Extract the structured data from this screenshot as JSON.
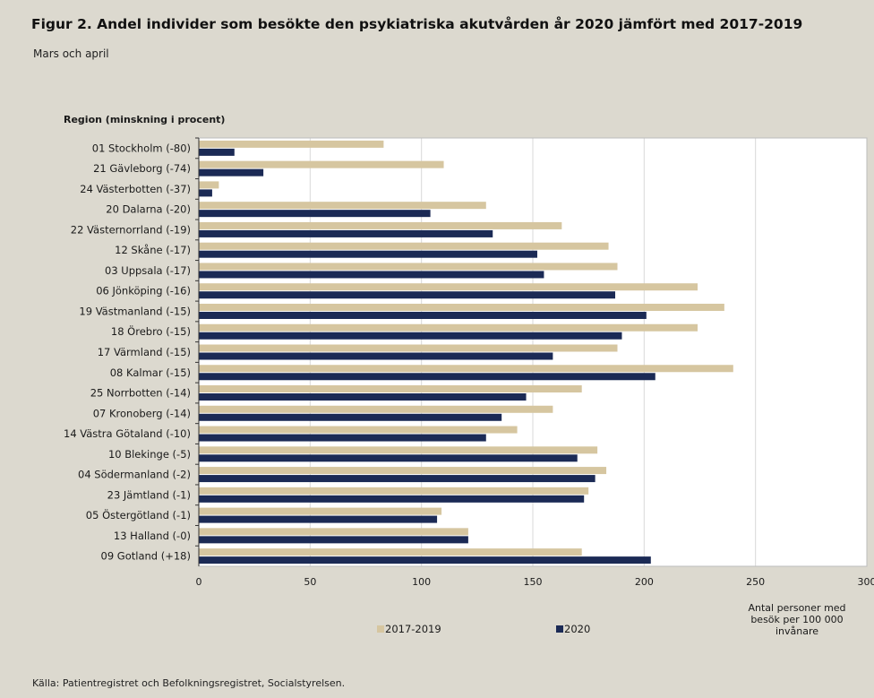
{
  "figure": {
    "title": "Figur 2. Andel individer som besökte den psykiatriska akutvården år 2020 jämfört med 2017-2019",
    "subtitle": "Mars och april",
    "source": "Källa: Patientregistret och Befolkningsregistret, Socialstyrelsen."
  },
  "chart_data": {
    "type": "bar",
    "orientation": "horizontal",
    "title": "Figur 2. Andel individer som besökte den psykiatriska akutvården år 2020 jämfört med 2017-2019",
    "subtitle": "Mars och april",
    "ylabel": "Region (minskning i procent)",
    "xlabel_lines": [
      "Antal personer med",
      "besök per 100 000",
      "invånare"
    ],
    "xlim": [
      0,
      300
    ],
    "xticks": [
      0,
      50,
      100,
      150,
      200,
      250,
      300
    ],
    "grid": "vertical",
    "legend_position": "bottom",
    "categories": [
      "01 Stockholm  (-80)",
      "21 Gävleborg  (-74)",
      "24 Västerbotten  (-37)",
      "20 Dalarna  (-20)",
      "22 Västernorrland  (-19)",
      "12 Skåne  (-17)",
      "03 Uppsala  (-17)",
      "06 Jönköping  (-16)",
      "19 Västmanland  (-15)",
      "18 Örebro  (-15)",
      "17 Värmland  (-15)",
      "08 Kalmar  (-15)",
      "25 Norrbotten  (-14)",
      "07 Kronoberg  (-14)",
      "14 Västra Götaland  (-10)",
      "10 Blekinge  (-5)",
      "04 Södermanland  (-2)",
      "23 Jämtland  (-1)",
      "05 Östergötland  (-1)",
      "13 Halland  (-0)",
      "09 Gotland (+18)"
    ],
    "series": [
      {
        "name": "2017-2019",
        "color": "#d6c6a0",
        "values": [
          83,
          110,
          9,
          129,
          163,
          184,
          188,
          224,
          236,
          224,
          188,
          240,
          172,
          159,
          143,
          179,
          183,
          175,
          109,
          121,
          172
        ]
      },
      {
        "name": "2020",
        "color": "#1b2a55",
        "values": [
          16,
          29,
          6,
          104,
          132,
          152,
          155,
          187,
          201,
          190,
          159,
          205,
          147,
          136,
          129,
          170,
          178,
          173,
          107,
          121,
          203
        ]
      }
    ]
  }
}
